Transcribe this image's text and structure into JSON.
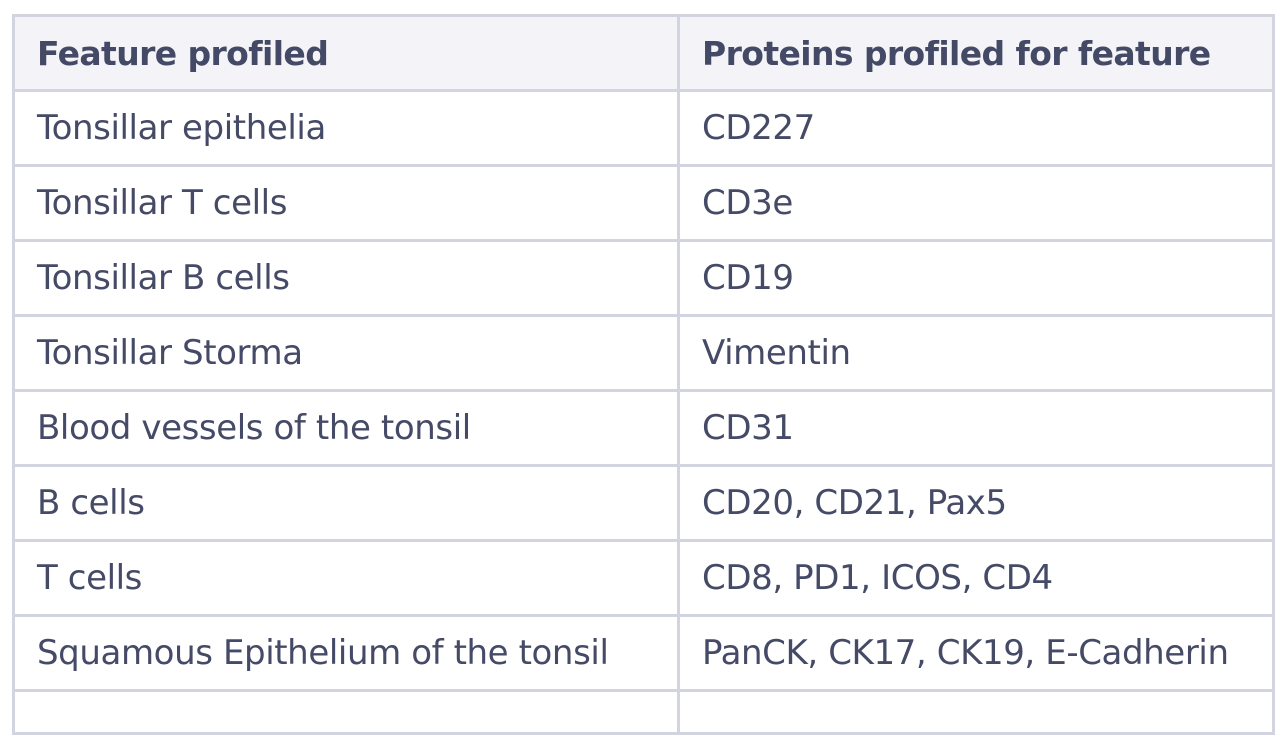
{
  "table": {
    "headers": [
      "Feature profiled",
      "Proteins profiled for feature"
    ],
    "rows": [
      {
        "feature": "Tonsillar epithelia",
        "proteins": "CD227"
      },
      {
        "feature": "Tonsillar T cells",
        "proteins": "CD3e"
      },
      {
        "feature": "Tonsillar B cells",
        "proteins": "CD19"
      },
      {
        "feature": "Tonsillar Storma",
        "proteins": "Vimentin"
      },
      {
        "feature": "Blood vessels of the tonsil",
        "proteins": "CD31"
      },
      {
        "feature": "B cells",
        "proteins": "CD20, CD21, Pax5"
      },
      {
        "feature": "T cells",
        "proteins": "CD8, PD1, ICOS, CD4"
      },
      {
        "feature": "Squamous Epithelium of the tonsil",
        "proteins": "PanCK, CK17, CK19, E-Cadherin"
      }
    ]
  }
}
